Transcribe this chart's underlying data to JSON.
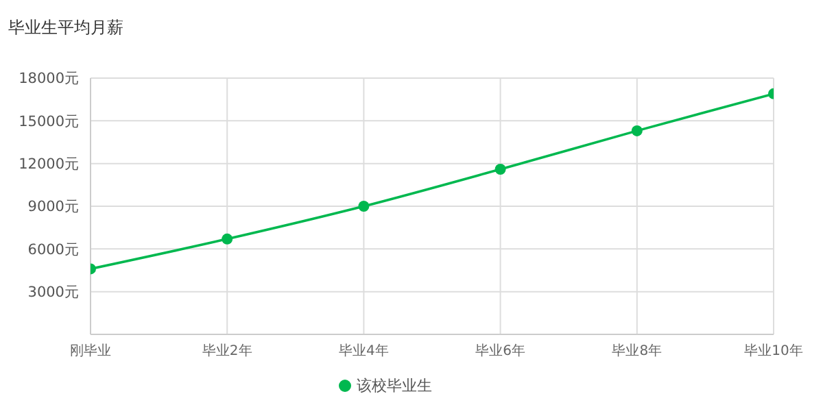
{
  "chart_data": {
    "type": "line",
    "title": "毕业生平均月薪",
    "categories": [
      "刚毕业",
      "毕业2年",
      "毕业4年",
      "毕业6年",
      "毕业8年",
      "毕业10年"
    ],
    "series": [
      {
        "name": "该校毕业生",
        "color": "#00b84f",
        "values": [
          4600,
          6700,
          9000,
          11600,
          14300,
          16900
        ]
      }
    ],
    "ylim": [
      0,
      18000
    ],
    "yticks": [
      {
        "value": 0,
        "label": null
      },
      {
        "value": 3000,
        "label": "3000元"
      },
      {
        "value": 6000,
        "label": "6000元"
      },
      {
        "value": 9000,
        "label": "9000元"
      },
      {
        "value": 12000,
        "label": "12000元"
      },
      {
        "value": 15000,
        "label": "15000元"
      },
      {
        "value": 18000,
        "label": "18000元"
      }
    ],
    "grid": true,
    "legend": "bottom",
    "marker": "circle",
    "line_style": "solid"
  }
}
